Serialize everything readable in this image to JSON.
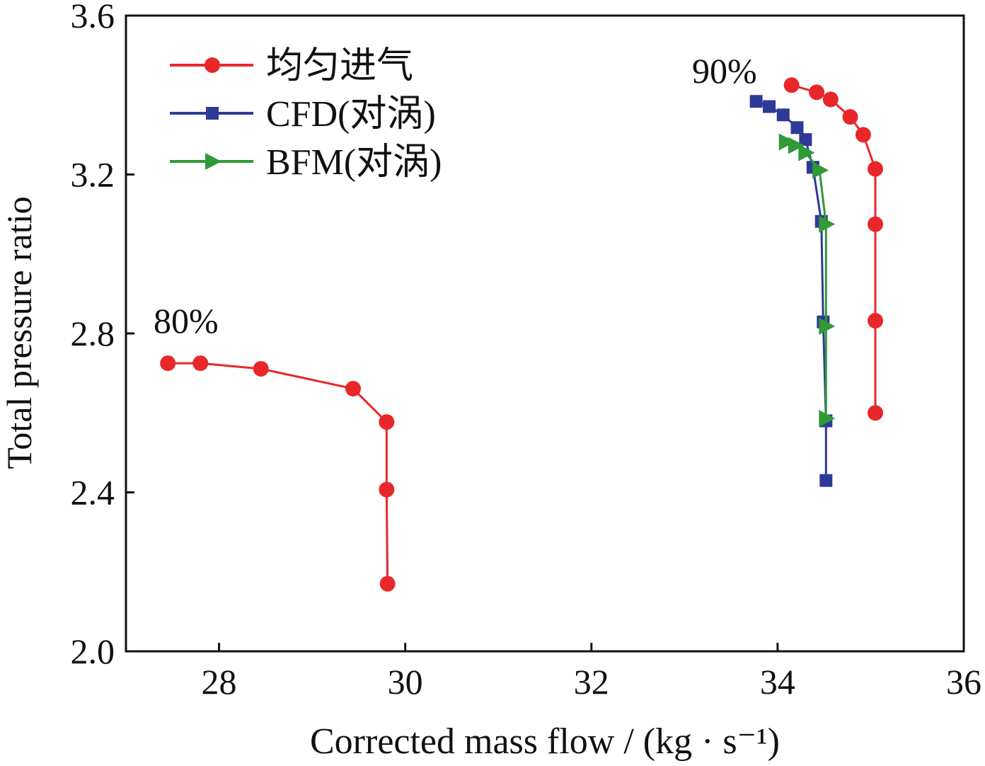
{
  "chart_data": {
    "type": "line",
    "xlabel": "Corrected mass flow / (kg · s⁻¹)",
    "ylabel": "Total pressure ratio",
    "xlim": [
      27,
      36
    ],
    "ylim": [
      2.0,
      3.6
    ],
    "xticks": [
      28,
      30,
      32,
      34,
      36
    ],
    "yticks": [
      2.0,
      2.4,
      2.8,
      3.2,
      3.6
    ],
    "xtick_labels": [
      "28",
      "30",
      "32",
      "34",
      "36"
    ],
    "ytick_labels": [
      "2.0",
      "2.4",
      "2.8",
      "3.2",
      "3.6"
    ],
    "grid": false,
    "legend_position": "top-left",
    "annotations": [
      {
        "text": "80%",
        "x": 27.9,
        "y": 2.82
      },
      {
        "text": "90%",
        "x": 33.6,
        "y": 3.45
      }
    ],
    "series": [
      {
        "name": "均匀进气",
        "color": "#e8272a",
        "marker": "circle",
        "x": [
          34.15,
          34.42,
          34.57,
          34.78,
          34.92,
          35.05,
          35.05,
          35.05,
          35.05
        ],
        "y": [
          3.425,
          3.407,
          3.389,
          3.345,
          3.3,
          3.214,
          3.075,
          2.832,
          2.6
        ]
      },
      {
        "name": "CFD(对涡)",
        "color": "#2e3a98",
        "marker": "square",
        "x": [
          33.77,
          33.91,
          34.06,
          34.21,
          34.3,
          34.38,
          34.47,
          34.49,
          34.52,
          34.52
        ],
        "y": [
          3.384,
          3.371,
          3.35,
          3.318,
          3.288,
          3.218,
          3.082,
          2.829,
          2.58,
          2.43
        ]
      },
      {
        "name": "BFM(对涡)",
        "color": "#2f9a36",
        "marker": "triangle-right",
        "x": [
          34.09,
          34.19,
          34.3,
          34.45,
          34.52,
          34.52,
          34.52
        ],
        "y": [
          3.282,
          3.273,
          3.255,
          3.211,
          3.075,
          2.818,
          2.586
        ]
      },
      {
        "color": "#e8272a",
        "marker": "circle",
        "x": [
          27.45,
          27.8,
          28.45,
          29.44,
          29.8,
          29.8,
          29.81
        ],
        "y": [
          2.725,
          2.725,
          2.711,
          2.661,
          2.577,
          2.407,
          2.17
        ]
      }
    ]
  }
}
